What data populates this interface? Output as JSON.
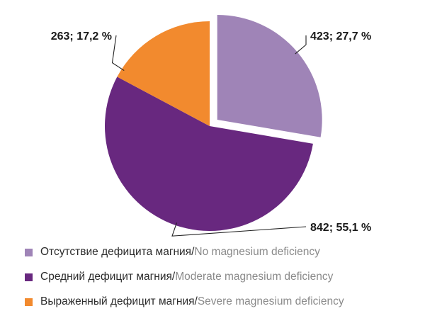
{
  "chart_data": {
    "type": "pie",
    "title": "",
    "slices": [
      {
        "value": 423,
        "percent": 27.7,
        "label": "423; 27,7 %",
        "color": "#9f84b7",
        "legend_ru": "Отсутствие дефицита магния",
        "legend_en": "No magnesium deficiency",
        "exploded": true
      },
      {
        "value": 842,
        "percent": 55.1,
        "label": "842; 55,1 %",
        "color": "#68287f",
        "legend_ru": "Средний дефицит магния",
        "legend_en": "Moderate magnesium deficiency",
        "exploded": false
      },
      {
        "value": 263,
        "percent": 17.2,
        "label": "263; 17,2 %",
        "color": "#f28a2e",
        "legend_ru": "Выраженный дефицит магния",
        "legend_en": "Severe magnesium deficiency",
        "exploded": false
      }
    ],
    "legend_separator": " / ",
    "legend_position": "bottom-left",
    "start_angle_deg": 0,
    "direction": "clockwise"
  }
}
